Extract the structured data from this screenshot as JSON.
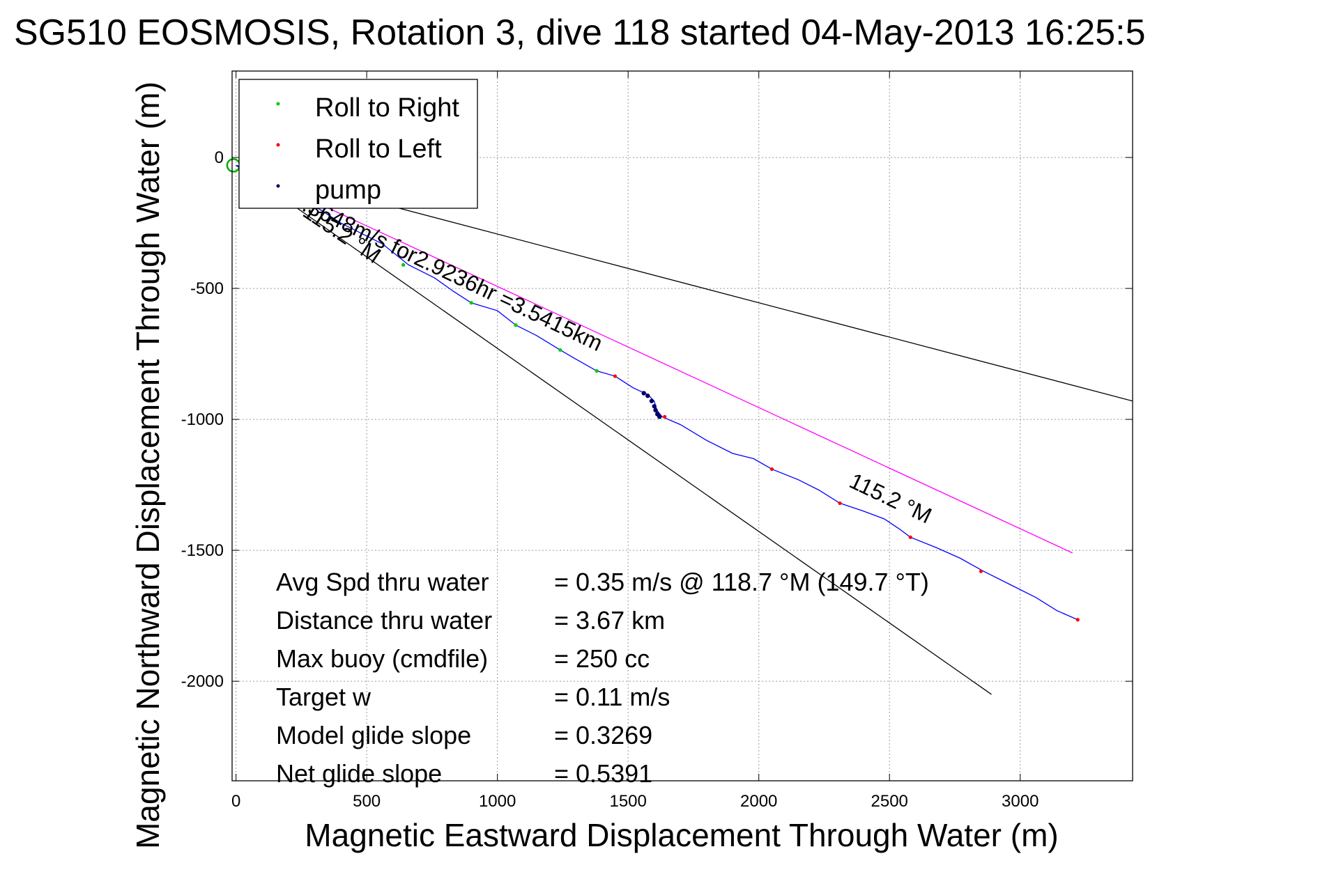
{
  "chart_data": {
    "type": "line",
    "title": "SG510 EOSMOSIS, Rotation 3, dive 118 started 04-May-2013 16:25:5",
    "xlabel": "Magnetic Eastward Displacement Through Water (m)",
    "ylabel": "Magnetic Northward Displacement Through Water (m)",
    "xlim": [
      -15,
      3430
    ],
    "ylim": [
      -2380,
      330
    ],
    "x_ticks": [
      0,
      500,
      1000,
      1500,
      2000,
      2500,
      3000
    ],
    "y_ticks": [
      0,
      -500,
      -1000,
      -1500,
      -2000
    ],
    "x_tick_labels": [
      "0",
      "500",
      "1000",
      "1500",
      "2000",
      "2500",
      "3000"
    ],
    "y_tick_labels": [
      "0",
      "-500",
      "-1000",
      "-1500",
      "-2000"
    ],
    "grid": true,
    "legend": {
      "position": "top-left",
      "entries": [
        {
          "name": "Roll to Right",
          "color": "#00cc00"
        },
        {
          "name": "Roll to Left",
          "color": "#ff0000"
        },
        {
          "name": "pump",
          "color": "#000060"
        }
      ]
    },
    "track": {
      "color": "#0000ff",
      "points": [
        [
          0,
          -30
        ],
        [
          200,
          -120
        ],
        [
          400,
          -250
        ],
        [
          560,
          -330
        ],
        [
          660,
          -410
        ],
        [
          760,
          -460
        ],
        [
          830,
          -510
        ],
        [
          900,
          -555
        ],
        [
          1000,
          -585
        ],
        [
          1070,
          -640
        ],
        [
          1150,
          -680
        ],
        [
          1240,
          -735
        ],
        [
          1300,
          -770
        ],
        [
          1380,
          -815
        ],
        [
          1450,
          -835
        ],
        [
          1520,
          -880
        ],
        [
          1575,
          -905
        ],
        [
          1600,
          -930
        ],
        [
          1610,
          -965
        ],
        [
          1630,
          -990
        ],
        [
          1700,
          -1020
        ],
        [
          1800,
          -1080
        ],
        [
          1900,
          -1130
        ],
        [
          1980,
          -1150
        ],
        [
          2050,
          -1190
        ],
        [
          2150,
          -1230
        ],
        [
          2230,
          -1270
        ],
        [
          2310,
          -1320
        ],
        [
          2400,
          -1350
        ],
        [
          2480,
          -1380
        ],
        [
          2540,
          -1420
        ],
        [
          2580,
          -1450
        ],
        [
          2680,
          -1490
        ],
        [
          2770,
          -1530
        ],
        [
          2860,
          -1580
        ],
        [
          2960,
          -1630
        ],
        [
          3060,
          -1680
        ],
        [
          3140,
          -1730
        ],
        [
          3220,
          -1765
        ]
      ]
    },
    "markers": {
      "roll_right": [
        [
          640,
          -410
        ],
        [
          900,
          -555
        ],
        [
          1070,
          -640
        ],
        [
          1240,
          -735
        ],
        [
          1380,
          -815
        ]
      ],
      "roll_left": [
        [
          1450,
          -835
        ],
        [
          1640,
          -990
        ],
        [
          2050,
          -1190
        ],
        [
          2310,
          -1320
        ],
        [
          2580,
          -1450
        ],
        [
          2850,
          -1580
        ],
        [
          3220,
          -1765
        ]
      ],
      "pump": [
        [
          1560,
          -900
        ],
        [
          1575,
          -910
        ],
        [
          1590,
          -930
        ],
        [
          1600,
          -950
        ],
        [
          1605,
          -965
        ],
        [
          1612,
          -980
        ],
        [
          1620,
          -990
        ]
      ]
    },
    "reference_lines": [
      {
        "points": [
          [
            0,
            -30
          ],
          [
            3430,
            -930
          ]
        ],
        "color": "#000000"
      },
      {
        "points": [
          [
            0,
            -30
          ],
          [
            2890,
            -2050
          ]
        ],
        "color": "#000000"
      },
      {
        "points": [
          [
            0,
            -30
          ],
          [
            3200,
            -1510
          ]
        ],
        "color": "#ff00ff"
      }
    ],
    "start_marker": {
      "x": -10,
      "y": -30,
      "color": "#00aa00"
    },
    "annotations": [
      {
        "id": "vector",
        "text": "0.3648m/s for2.9236hr =3.5415km",
        "anchor": [
          205,
          -180
        ],
        "angle": 25.5
      },
      {
        "id": "heading-left",
        "text": "115.2 °M",
        "anchor": [
          250,
          -220
        ],
        "angle": 34
      },
      {
        "id": "heading-right",
        "text": "115.2 °M",
        "anchor": [
          2340,
          -1255
        ],
        "angle": 25.5
      }
    ],
    "stats": [
      {
        "label": "Avg Spd thru water",
        "value": "=  0.35 m/s @ 118.7 °M (149.7 °T)"
      },
      {
        "label": "Distance thru water",
        "value": "=  3.67 km"
      },
      {
        "label": "Max buoy (cmdfile)",
        "value": "= 250 cc"
      },
      {
        "label": "Target w",
        "value": "= 0.11 m/s"
      },
      {
        "label": "Model glide slope",
        "value": "= 0.3269"
      },
      {
        "label": "Net glide slope",
        "value": "= 0.5391"
      }
    ]
  }
}
